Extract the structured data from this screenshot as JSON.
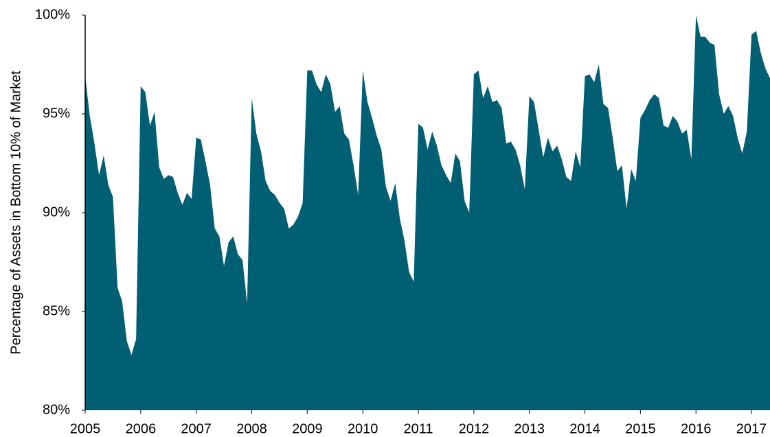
{
  "chart_data": {
    "type": "area",
    "y_label": "Percentage of Assets in Bottom 10% of Market",
    "color": "#005f73",
    "x": [
      2005,
      2005.0833,
      2005.1667,
      2005.25,
      2005.3333,
      2005.4167,
      2005.5,
      2005.5833,
      2005.6667,
      2005.75,
      2005.8333,
      2005.9167,
      2006,
      2006.0833,
      2006.1667,
      2006.25,
      2006.3333,
      2006.4167,
      2006.5,
      2006.5833,
      2006.6667,
      2006.75,
      2006.8333,
      2006.9167,
      2007,
      2007.0833,
      2007.1667,
      2007.25,
      2007.3333,
      2007.4167,
      2007.5,
      2007.5833,
      2007.6667,
      2007.75,
      2007.8333,
      2007.9167,
      2008,
      2008.0833,
      2008.1667,
      2008.25,
      2008.3333,
      2008.4167,
      2008.5,
      2008.5833,
      2008.6667,
      2008.75,
      2008.8333,
      2008.9167,
      2009,
      2009.0833,
      2009.1667,
      2009.25,
      2009.3333,
      2009.4167,
      2009.5,
      2009.5833,
      2009.6667,
      2009.75,
      2009.8333,
      2009.9167,
      2010,
      2010.0833,
      2010.1667,
      2010.25,
      2010.3333,
      2010.4167,
      2010.5,
      2010.5833,
      2010.6667,
      2010.75,
      2010.8333,
      2010.9167,
      2011,
      2011.0833,
      2011.1667,
      2011.25,
      2011.3333,
      2011.4167,
      2011.5,
      2011.5833,
      2011.6667,
      2011.75,
      2011.8333,
      2011.9167,
      2012,
      2012.0833,
      2012.1667,
      2012.25,
      2012.3333,
      2012.4167,
      2012.5,
      2012.5833,
      2012.6667,
      2012.75,
      2012.8333,
      2012.9167,
      2013,
      2013.0833,
      2013.1667,
      2013.25,
      2013.3333,
      2013.4167,
      2013.5,
      2013.5833,
      2013.6667,
      2013.75,
      2013.8333,
      2013.9167,
      2014,
      2014.0833,
      2014.1667,
      2014.25,
      2014.3333,
      2014.4167,
      2014.5,
      2014.5833,
      2014.6667,
      2014.75,
      2014.8333,
      2014.9167,
      2015,
      2015.0833,
      2015.1667,
      2015.25,
      2015.3333,
      2015.4167,
      2015.5,
      2015.5833,
      2015.6667,
      2015.75,
      2015.8333,
      2015.9167,
      2016,
      2016.0833,
      2016.1667,
      2016.25,
      2016.3333,
      2016.4167,
      2016.5,
      2016.5833,
      2016.6667,
      2016.75,
      2016.8333,
      2016.9167,
      2017,
      2017.0833,
      2017.1667,
      2017.25,
      2017.3333
    ],
    "values": [
      96.9,
      94.9,
      93.5,
      91.9,
      92.9,
      91.4,
      90.8,
      86.2,
      85.5,
      83.5,
      82.8,
      83.6,
      96.4,
      96.1,
      94.4,
      95.1,
      92.3,
      91.7,
      91.9,
      91.8,
      91.0,
      90.4,
      91.0,
      90.7,
      93.8,
      93.7,
      92.6,
      91.4,
      89.2,
      88.8,
      87.3,
      88.5,
      88.8,
      87.9,
      87.6,
      85.4,
      95.8,
      94.0,
      93.1,
      91.6,
      91.1,
      90.9,
      90.5,
      90.2,
      89.2,
      89.4,
      89.8,
      90.5,
      97.2,
      97.2,
      96.5,
      96.1,
      97.0,
      96.5,
      95.1,
      95.4,
      94.0,
      93.7,
      92.4,
      90.9,
      97.2,
      95.6,
      94.8,
      93.9,
      93.2,
      91.3,
      90.6,
      91.5,
      89.7,
      88.6,
      87.0,
      86.5,
      94.5,
      94.3,
      93.2,
      94.1,
      93.4,
      92.4,
      91.9,
      91.5,
      93.0,
      92.6,
      90.6,
      90.0,
      97.0,
      97.2,
      95.8,
      96.4,
      95.6,
      95.7,
      95.3,
      93.5,
      93.6,
      93.2,
      92.4,
      91.2,
      95.9,
      95.6,
      94.2,
      92.8,
      93.8,
      93.1,
      93.4,
      92.7,
      91.8,
      91.6,
      93.1,
      92.3,
      96.9,
      97.0,
      96.6,
      97.5,
      95.5,
      95.3,
      93.8,
      92.1,
      92.4,
      90.2,
      92.2,
      91.6,
      94.8,
      95.2,
      95.7,
      96.0,
      95.8,
      94.4,
      94.3,
      94.9,
      94.6,
      94.0,
      94.2,
      92.7,
      100,
      98.9,
      98.9,
      98.6,
      98.5,
      96.0,
      95.0,
      95.4,
      94.9,
      93.8,
      93.0,
      94.1,
      99.0,
      99.2,
      98.1,
      97.3,
      96.8
    ],
    "xlim": [
      2005,
      2017.3333
    ],
    "xticks": [
      2005,
      2006,
      2007,
      2008,
      2009,
      2010,
      2011,
      2012,
      2013,
      2014,
      2015,
      2016,
      2017
    ],
    "ylim": [
      80,
      100
    ],
    "yticks": [
      {
        "value": 80,
        "label": "80%"
      },
      {
        "value": 85,
        "label": "85%"
      },
      {
        "value": 90,
        "label": "90%"
      },
      {
        "value": 95,
        "label": "95%"
      },
      {
        "value": 100,
        "label": "100%"
      }
    ]
  }
}
